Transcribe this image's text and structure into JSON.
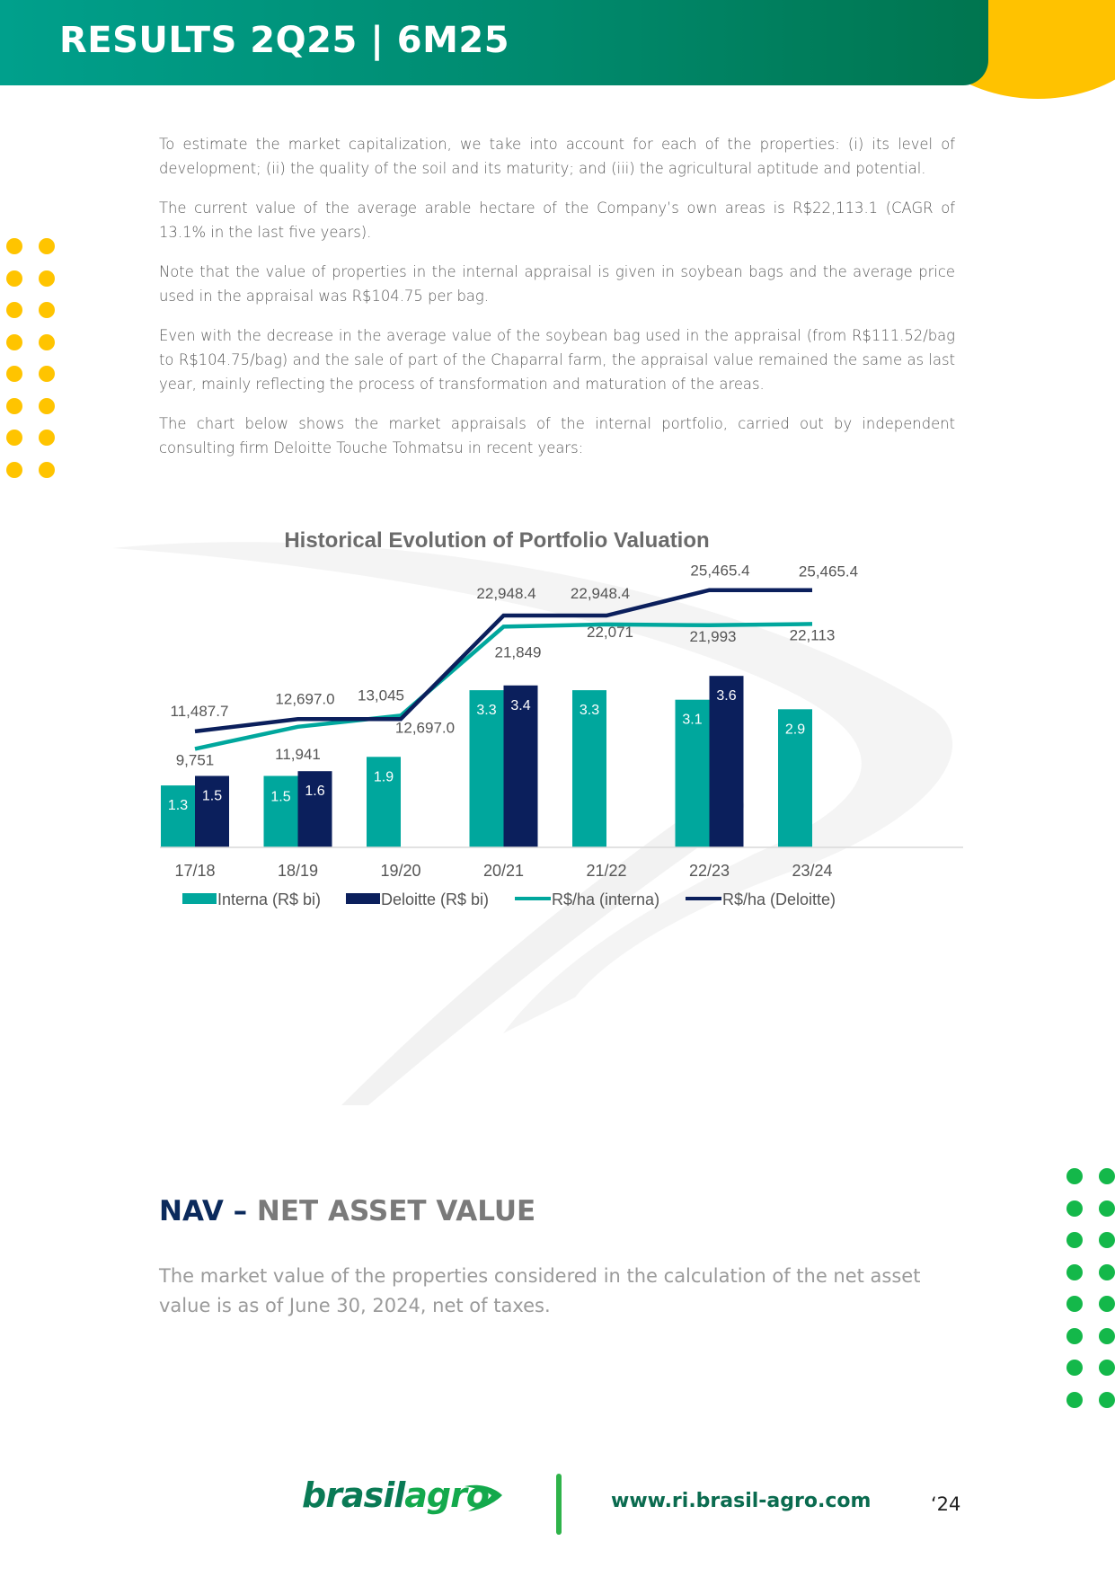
{
  "header": {
    "title": "RESULTS 2Q25 | 6M25"
  },
  "paragraphs": [
    "To estimate the market capitalization, we take into account for each of the properties: (i) its level of development; (ii) the quality of the soil and its maturity; and (iii) the agricultural aptitude and potential.",
    "The current value of the average arable hectare of the Company’s own areas is R$22,113.1 (CAGR of 13.1% in the last five years).",
    "Note that the value of properties in the internal appraisal is given in soybean bags and the average price used in the appraisal was R$104.75 per bag.",
    "Even with the decrease in the average value of the soybean bag used in the appraisal (from R$111.52/bag to R$104.75/bag) and the sale of part of the Chaparral farm, the appraisal value remained the same as last year, mainly reflecting the process of transformation and maturation of the areas.",
    "The chart below shows the market appraisals of the internal portfolio, carried out by independent consulting firm Deloitte Touche Tohmatsu in recent years:"
  ],
  "chart_data": {
    "type": "bar",
    "title": "Historical Evolution of Portfolio Valuation",
    "categories": [
      "17/18",
      "18/19",
      "19/20",
      "20/21",
      "21/22",
      "22/23",
      "23/24"
    ],
    "series": [
      {
        "name": "Interna (R$ bi)",
        "kind": "bar",
        "color": "#00a79d",
        "values": [
          1.3,
          1.5,
          1.9,
          3.3,
          3.3,
          3.1,
          2.9
        ],
        "labels": [
          "1.3",
          "1.5",
          "1.9",
          "3.3",
          "3.3",
          "3.1",
          "2.9"
        ]
      },
      {
        "name": "Deloitte (R$ bi)",
        "kind": "bar",
        "color": "#0b1f5c",
        "values": [
          1.5,
          1.6,
          null,
          3.4,
          null,
          3.6,
          null
        ],
        "labels": [
          "1.5",
          "1.6",
          "",
          "3.4",
          "",
          "3.6",
          ""
        ]
      },
      {
        "name": "R$/ha (interna)",
        "kind": "line",
        "color": "#00a79d",
        "values": [
          9751,
          11941,
          13045,
          21849,
          22071,
          21993,
          22113
        ],
        "labels": [
          "9,751",
          "11,941",
          "13,045",
          "21,849",
          "22,071",
          "21,993",
          "22,113"
        ]
      },
      {
        "name": "R$/ha (Deloitte)",
        "kind": "line",
        "color": "#0b1f5c",
        "values": [
          11487.7,
          12697.0,
          12697.0,
          22948.4,
          22948.4,
          25465.4,
          25465.4
        ],
        "labels": [
          "11,487.7",
          "12,697.0",
          "12,697.0",
          "22,948.4",
          "22,948.4",
          "25,465.4",
          "25,465.4"
        ]
      }
    ],
    "legend": "bottom"
  },
  "nav": {
    "title_a": "NAV – ",
    "title_b": "NET ASSET VALUE",
    "text": "The market value of the properties considered in the calculation of the net asset value is as of June 30, 2024, net of taxes."
  },
  "footer": {
    "logo_a": "brasil",
    "logo_b": "agro",
    "url": "www.ri.brasil-agro.com",
    "page": "‘24"
  }
}
